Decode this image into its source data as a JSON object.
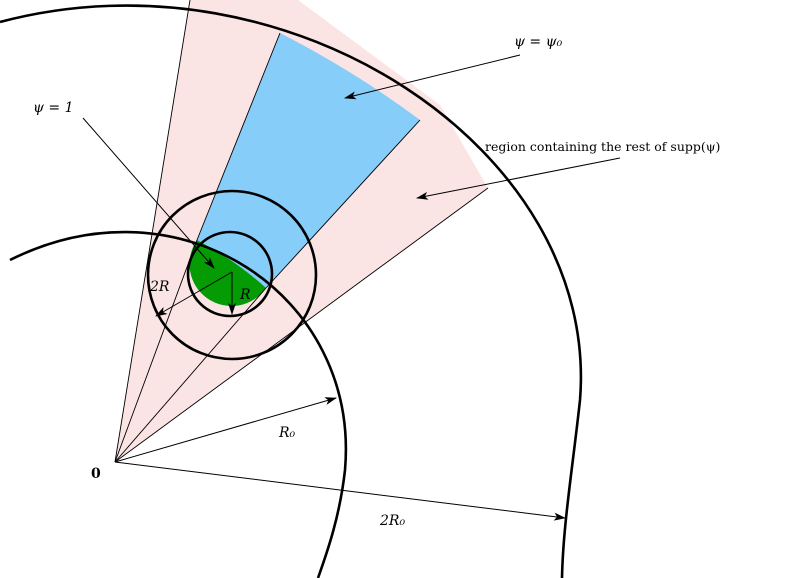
{
  "labels": {
    "psi_eq_psi0": "ψ = ψ₀",
    "psi_eq_1": "ψ = 1",
    "region_rest": "region containing the rest of supp(ψ)",
    "two_R": "2R",
    "R": "R",
    "R0": "R₀",
    "two_R0": "2R₀",
    "origin": "0"
  },
  "colors": {
    "pink_region": "#fbe4e4",
    "blue_region": "#87cdf9",
    "green_region": "#049b04",
    "stroke": "#000000"
  }
}
